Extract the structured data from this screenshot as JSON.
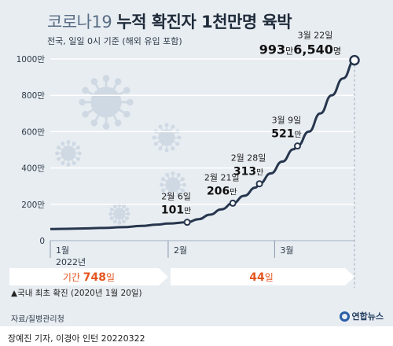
{
  "title": {
    "light": "코로나19",
    "bold": "누적 확진자 1천만명 육박"
  },
  "subtitle": "전국, 일일 0시 기준 (해외 유입 포함)",
  "chart_data": {
    "type": "line",
    "ylim": [
      0,
      1000
    ],
    "y_ticks": [
      {
        "value": 0,
        "label": "0"
      },
      {
        "value": 200,
        "label": "200만"
      },
      {
        "value": 400,
        "label": "400만"
      },
      {
        "value": 600,
        "label": "600만"
      },
      {
        "value": 800,
        "label": "800만"
      },
      {
        "value": 1000,
        "label": "1000만"
      }
    ],
    "x_ticks": [
      {
        "label": "1월",
        "sub": "2022년",
        "day": 1
      },
      {
        "label": "2월",
        "day": 32
      },
      {
        "label": "3월",
        "day": 60
      }
    ],
    "xlim_days": [
      1,
      81
    ],
    "series": [
      {
        "color": "#27364d",
        "points": [
          [
            1,
            64
          ],
          [
            5,
            65
          ],
          [
            10,
            67
          ],
          [
            15,
            70
          ],
          [
            20,
            74
          ],
          [
            25,
            81
          ],
          [
            29,
            88
          ],
          [
            32,
            94
          ],
          [
            37,
            101
          ],
          [
            40,
            118
          ],
          [
            43,
            143
          ],
          [
            46,
            172
          ],
          [
            49,
            206
          ],
          [
            52,
            247
          ],
          [
            55,
            292
          ],
          [
            56,
            313
          ],
          [
            59,
            370
          ],
          [
            62,
            435
          ],
          [
            65,
            503
          ],
          [
            66,
            521
          ],
          [
            69,
            600
          ],
          [
            72,
            700
          ],
          [
            75,
            800
          ],
          [
            78,
            893
          ],
          [
            81,
            993
          ]
        ]
      }
    ],
    "annotations": [
      {
        "day": 37,
        "value": 101,
        "date": "2월 6일",
        "num": "101",
        "unit": "만"
      },
      {
        "day": 49,
        "value": 206,
        "date": "2월 21일",
        "num": "206",
        "unit": "만"
      },
      {
        "day": 56,
        "value": 313,
        "date": "2월 28일",
        "num": "313",
        "unit": "만"
      },
      {
        "day": 66,
        "value": 521,
        "date": "3월 9일",
        "num": "521",
        "unit": "만"
      },
      {
        "day": 81,
        "value": 993,
        "date": "3월 22일",
        "num": "993",
        "unit": "만",
        "num2": "6,540",
        "unit2": "명",
        "final": true
      }
    ],
    "periods": [
      {
        "label": "기간",
        "num": "748",
        "unit": "일"
      },
      {
        "label": "",
        "num": "44",
        "unit": "일"
      }
    ],
    "first_case_note": "▲국내 최초 확진 (2020년 1월 20일)",
    "grid": true
  },
  "colors": {
    "background": "#e8edf2",
    "line": "#27364d",
    "axis_text": "#2e3a48",
    "accent": "#e4551f",
    "arrow": "#ffffff",
    "virus": "#cfd9e3"
  },
  "footer": {
    "source": "자료/질병관리청",
    "brand": "연합뉴스",
    "credit": "장예진 기자, 이경아 인턴  20220322"
  }
}
